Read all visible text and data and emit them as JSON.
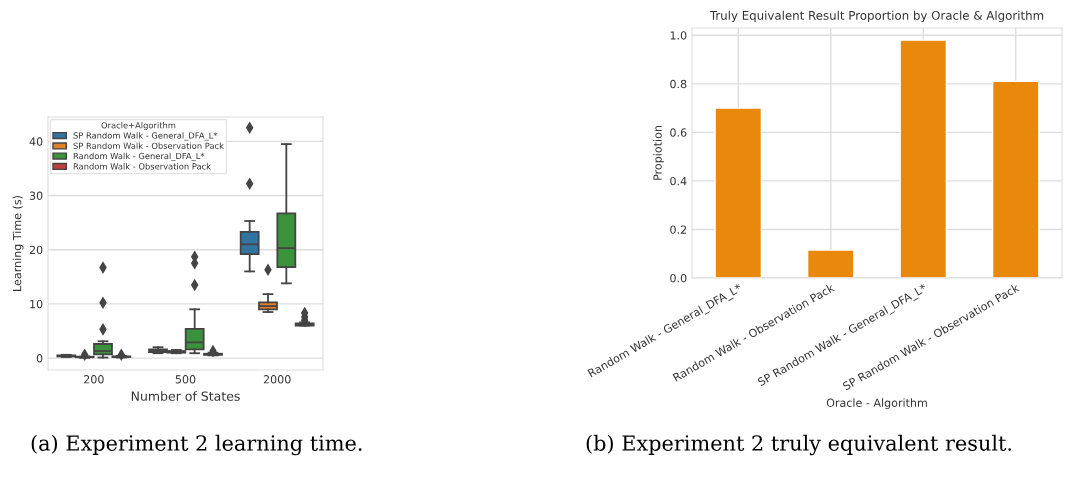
{
  "chart_data": [
    {
      "type": "box",
      "xlabel": "Number of States",
      "ylabel": "Learning Time (s)",
      "legend_title": "Oracle+Algorithm",
      "legend": "top left",
      "grid": "y",
      "categories": [
        "200",
        "500",
        "2000"
      ],
      "ylim": [
        -2.2,
        44.5
      ],
      "yticks": [
        0,
        10,
        20,
        30,
        40
      ],
      "series": [
        {
          "name": "SP Random Walk - General_DFA_L*",
          "color": "#3274a1",
          "boxes": [
            {
              "low": 0.2,
              "q1": 0.3,
              "median": 0.4,
              "q3": 0.5,
              "high": 0.6
            },
            {
              "low": 0.9,
              "q1": 1.1,
              "median": 1.3,
              "q3": 1.6,
              "high": 2.0
            },
            {
              "low": 16,
              "q1": 19.2,
              "median": 21,
              "q3": 23.3,
              "high": 25.3,
              "outliers": [
                32.2,
                42.5
              ]
            }
          ]
        },
        {
          "name": "SP Random Walk - Observation Pack",
          "color": "#e1812c",
          "boxes": [
            {
              "low": 0.05,
              "q1": 0.15,
              "median": 0.2,
              "q3": 0.25,
              "high": 0.3,
              "outliers": [
                0.6
              ]
            },
            {
              "low": 0.9,
              "q1": 1.0,
              "median": 1.1,
              "q3": 1.3,
              "high": 1.5
            },
            {
              "low": 8.5,
              "q1": 9,
              "median": 9.6,
              "q3": 10.3,
              "high": 11.8,
              "outliers": [
                16.3
              ]
            }
          ]
        },
        {
          "name": "Random Walk - General_DFA_L*",
          "color": "#3a923a",
          "boxes": [
            {
              "low": 0.1,
              "q1": 0.7,
              "median": 1.3,
              "q3": 2.6,
              "high": 3.1,
              "outliers": [
                5.3,
                10.2,
                16.7
              ]
            },
            {
              "low": 0.9,
              "q1": 1.6,
              "median": 2.9,
              "q3": 5.4,
              "high": 9.0,
              "outliers": [
                13.5,
                17.5,
                18.7
              ]
            },
            {
              "low": 13.8,
              "q1": 16.8,
              "median": 20.3,
              "q3": 26.7,
              "high": 39.5
            }
          ]
        },
        {
          "name": "Random Walk - Observation Pack",
          "color": "#c03d3e",
          "boxes": [
            {
              "low": 0.1,
              "q1": 0.2,
              "median": 0.25,
              "q3": 0.3,
              "high": 0.4,
              "outliers": [
                0.6
              ]
            },
            {
              "low": 0.5,
              "q1": 0.6,
              "median": 0.7,
              "q3": 0.8,
              "high": 1.0,
              "outliers": [
                1.3
              ]
            },
            {
              "low": 6.0,
              "q1": 6.0,
              "median": 6.2,
              "q3": 6.4,
              "high": 6.6,
              "outliers": [
                7.0,
                7.6,
                8.3
              ]
            }
          ]
        }
      ],
      "annotations": [
        "(a) Experiment 2 learning time."
      ]
    },
    {
      "type": "bar",
      "title": "Truly Equivalent Result Proportion by Oracle & Algorithm",
      "xlabel": "Oracle - Algorithm",
      "ylabel": "Propiotion",
      "grid": true,
      "categories": [
        "Random Walk - General_DFA_L*",
        "Random Walk - Observation Pack",
        "SP Random Walk - General_DFA_L*",
        "SP Random Walk - Observation Pack"
      ],
      "values": [
        0.7,
        0.115,
        0.98,
        0.81
      ],
      "color": "#e8890c",
      "ylim": [
        0,
        1.03
      ],
      "yticks": [
        {
          "value": 0,
          "label": "0.0"
        },
        {
          "value": 0.2,
          "label": "0.2"
        },
        {
          "value": 0.4,
          "label": "0.4"
        },
        {
          "value": 0.6,
          "label": "0.6"
        },
        {
          "value": 0.8,
          "label": "0.8"
        },
        {
          "value": 1.0,
          "label": "1.0"
        }
      ],
      "annotations": [
        "(b) Experiment 2 truly equivalent result."
      ]
    }
  ]
}
